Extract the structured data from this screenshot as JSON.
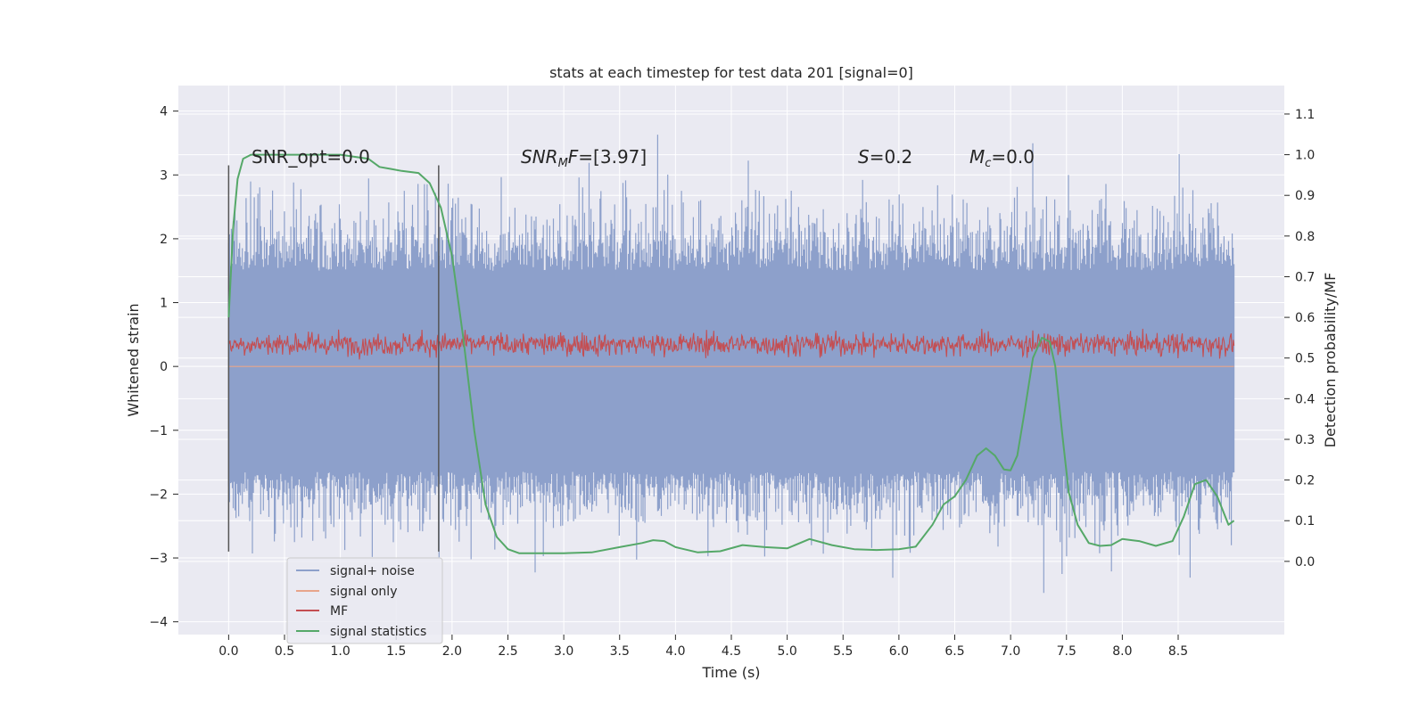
{
  "chart_data": {
    "type": "line",
    "title": "stats at each timestep for test data 201 [signal=0]",
    "xlabel": "Time (s)",
    "ylabel_left": "Whitened strain",
    "ylabel_right": "Detection probability/MF",
    "xlim": [
      -0.45,
      9.45
    ],
    "ylim_left": [
      -4.2,
      4.4
    ],
    "ylim_right": [
      -0.18,
      1.17
    ],
    "x_ticks": [
      "0.0",
      "0.5",
      "1.0",
      "1.5",
      "2.0",
      "2.5",
      "3.0",
      "3.5",
      "4.0",
      "4.5",
      "5.0",
      "5.5",
      "6.0",
      "6.5",
      "7.0",
      "7.5",
      "8.0",
      "8.5"
    ],
    "y_ticks_left": [
      "4",
      "3",
      "2",
      "1",
      "0",
      "−1",
      "−2",
      "−3",
      "−4"
    ],
    "y_ticks_right": [
      "1.1",
      "1.0",
      "0.9",
      "0.8",
      "0.7",
      "0.6",
      "0.5",
      "0.4",
      "0.3",
      "0.2",
      "0.1",
      "0.0"
    ],
    "grid": true,
    "annotations": {
      "snr_opt": "SNR_opt=0.0",
      "snr_mf": "SNR",
      "snr_mf_sub": "M",
      "snr_mf_f": "F",
      "snr_mf_val": "=[3.97]",
      "s_var": "S",
      "s_val": "=0.2",
      "mc_var": "M",
      "mc_sub": "c",
      "mc_val": "=0.0"
    },
    "vlines": [
      {
        "x": 0.0,
        "y0": -2.9,
        "y1": 3.15
      },
      {
        "x": 1.88,
        "y0": -2.9,
        "y1": 3.15
      }
    ],
    "legend": {
      "position": "lower-left",
      "entries": [
        {
          "label": "signal+ noise",
          "color": "#8da0cb"
        },
        {
          "label": "signal only",
          "color": "#e8a58b"
        },
        {
          "label": "MF",
          "color": "#c44e52"
        },
        {
          "label": "signal statistics",
          "color": "#55a868"
        }
      ]
    },
    "series": [
      {
        "name": "signal statistics",
        "axis": "right",
        "color": "#55a868",
        "x": [
          0.0,
          0.04,
          0.08,
          0.13,
          0.2,
          0.35,
          0.6,
          1.0,
          1.25,
          1.35,
          1.45,
          1.55,
          1.7,
          1.8,
          1.9,
          2.0,
          2.1,
          2.2,
          2.3,
          2.4,
          2.5,
          2.6,
          2.75,
          3.0,
          3.25,
          3.5,
          3.7,
          3.8,
          3.9,
          4.0,
          4.2,
          4.4,
          4.6,
          4.8,
          5.0,
          5.2,
          5.4,
          5.6,
          5.8,
          6.0,
          6.15,
          6.3,
          6.4,
          6.5,
          6.6,
          6.7,
          6.78,
          6.86,
          6.94,
          7.0,
          7.06,
          7.12,
          7.2,
          7.28,
          7.35,
          7.4,
          7.46,
          7.52,
          7.6,
          7.7,
          7.8,
          7.9,
          8.0,
          8.15,
          8.3,
          8.45,
          8.55,
          8.65,
          8.75,
          8.85,
          8.95,
          9.0
        ],
        "y": [
          0.6,
          0.82,
          0.94,
          0.99,
          1.0,
          1.0,
          1.0,
          1.0,
          0.99,
          0.97,
          0.965,
          0.96,
          0.955,
          0.93,
          0.87,
          0.75,
          0.55,
          0.32,
          0.14,
          0.06,
          0.03,
          0.02,
          0.02,
          0.02,
          0.022,
          0.035,
          0.045,
          0.052,
          0.05,
          0.035,
          0.022,
          0.025,
          0.04,
          0.035,
          0.032,
          0.055,
          0.04,
          0.03,
          0.028,
          0.03,
          0.036,
          0.09,
          0.14,
          0.16,
          0.2,
          0.26,
          0.278,
          0.26,
          0.226,
          0.224,
          0.26,
          0.36,
          0.5,
          0.55,
          0.54,
          0.48,
          0.32,
          0.17,
          0.09,
          0.045,
          0.038,
          0.04,
          0.055,
          0.05,
          0.038,
          0.05,
          0.11,
          0.19,
          0.2,
          0.16,
          0.09,
          0.1
        ]
      },
      {
        "name": "MF",
        "axis": "left",
        "color": "#c44e52",
        "x_range": [
          0.0,
          9.0
        ],
        "baseline": 0.05,
        "band_hi": 0.72
      },
      {
        "name": "signal+ noise",
        "axis": "left",
        "color": "#8da0cb",
        "x_range": [
          0.0,
          9.0
        ],
        "dense_range": [
          -1.65,
          1.5
        ],
        "extreme_range": [
          -3.7,
          4.0
        ]
      },
      {
        "name": "signal only",
        "axis": "left",
        "color": "#e8a58b",
        "x_range": [
          0.0,
          9.0
        ],
        "values": [
          0.0
        ]
      }
    ]
  }
}
